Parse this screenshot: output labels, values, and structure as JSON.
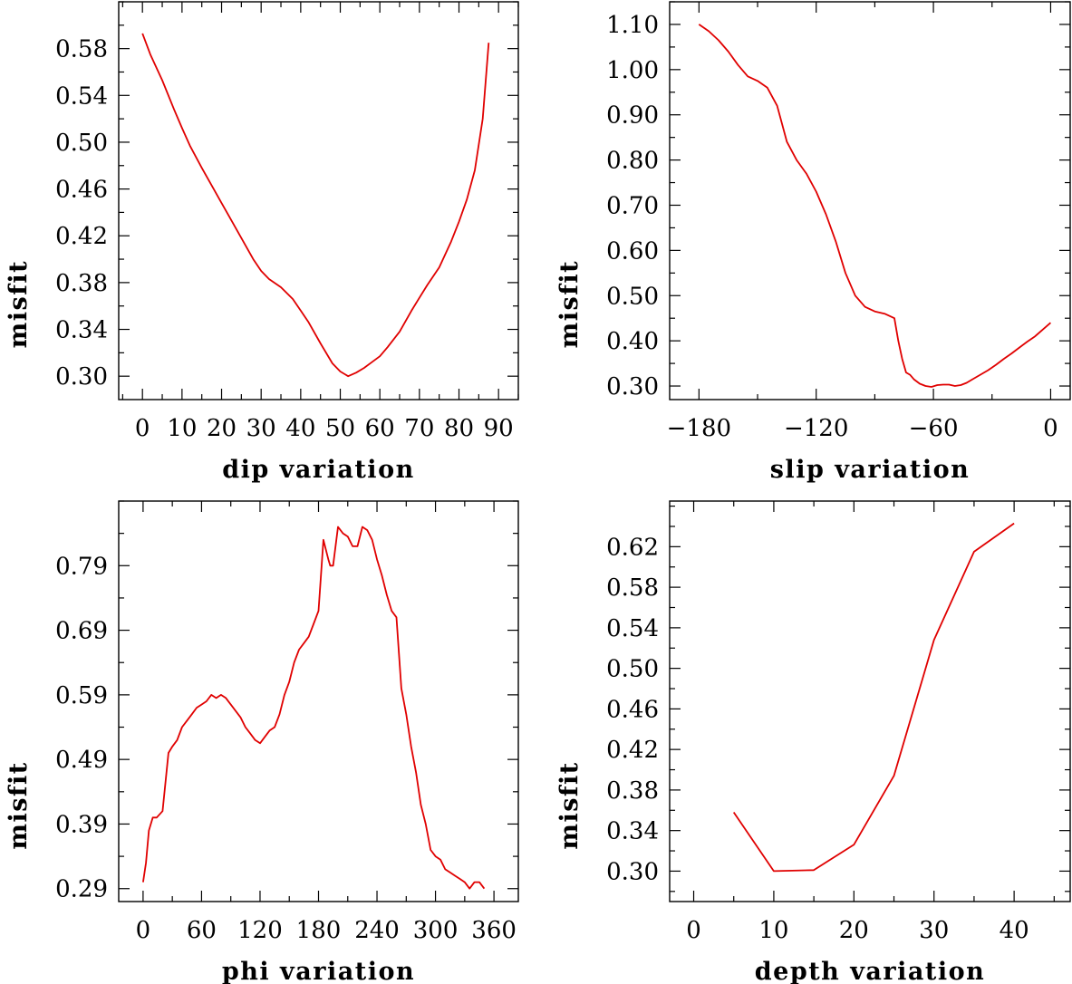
{
  "chart_data": [
    {
      "type": "line",
      "xlabel": "dip    variation",
      "ylabel": "misfit",
      "xlim": [
        -6,
        95
      ],
      "ylim": [
        0.28,
        0.62
      ],
      "xticks": [
        0,
        10,
        20,
        30,
        40,
        50,
        60,
        70,
        80,
        90
      ],
      "xtick_labels": [
        "0",
        "10",
        "20",
        "30",
        "40",
        "50",
        "60",
        "70",
        "80",
        "90"
      ],
      "yticks": [
        0.3,
        0.34,
        0.38,
        0.42,
        0.46,
        0.5,
        0.54,
        0.58
      ],
      "ytick_labels": [
        "0.30",
        "0.34",
        "0.38",
        "0.42",
        "0.46",
        "0.50",
        "0.54",
        "0.58"
      ],
      "color": "#e00000",
      "x": [
        0,
        2,
        5,
        8,
        10,
        12,
        15,
        18,
        20,
        22,
        25,
        28,
        30,
        32,
        35,
        38,
        40,
        42,
        45,
        48,
        50,
        52,
        54,
        56,
        58,
        60,
        62,
        65,
        68,
        70,
        72,
        75,
        78,
        80,
        82,
        84,
        86,
        87.5
      ],
      "y": [
        0.593,
        0.575,
        0.553,
        0.528,
        0.512,
        0.497,
        0.478,
        0.46,
        0.448,
        0.436,
        0.418,
        0.4,
        0.39,
        0.383,
        0.376,
        0.366,
        0.356,
        0.346,
        0.328,
        0.311,
        0.304,
        0.3,
        0.303,
        0.307,
        0.312,
        0.317,
        0.325,
        0.338,
        0.356,
        0.367,
        0.378,
        0.393,
        0.415,
        0.432,
        0.451,
        0.476,
        0.52,
        0.585
      ]
    },
    {
      "type": "line",
      "xlabel": "slip    variation",
      "ylabel": "misfit",
      "xlim": [
        -195,
        10
      ],
      "ylim": [
        0.27,
        1.15
      ],
      "xticks": [
        -180,
        -120,
        -60,
        0
      ],
      "xtick_labels": [
        "−180",
        "−120",
        "−60",
        "0"
      ],
      "yticks": [
        0.3,
        0.4,
        0.5,
        0.6,
        0.7,
        0.8,
        0.9,
        1.0,
        1.1
      ],
      "ytick_labels": [
        "0.30",
        "0.40",
        "0.50",
        "0.60",
        "0.70",
        "0.80",
        "0.90",
        "1.00",
        "1.10"
      ],
      "color": "#e00000",
      "x": [
        -180,
        -175,
        -170,
        -165,
        -160,
        -155,
        -150,
        -145,
        -140,
        -135,
        -130,
        -125,
        -120,
        -115,
        -110,
        -105,
        -100,
        -95,
        -90,
        -85,
        -80,
        -78,
        -76,
        -74,
        -72,
        -70,
        -67,
        -64,
        -61,
        -58,
        -55,
        -52,
        -49,
        -46,
        -43,
        -40,
        -36,
        -32,
        -28,
        -24,
        -20,
        -16,
        -12,
        -8,
        -4,
        0
      ],
      "y": [
        1.1,
        1.085,
        1.065,
        1.04,
        1.01,
        0.985,
        0.975,
        0.96,
        0.92,
        0.84,
        0.8,
        0.77,
        0.73,
        0.68,
        0.62,
        0.55,
        0.5,
        0.475,
        0.465,
        0.46,
        0.45,
        0.4,
        0.36,
        0.33,
        0.325,
        0.315,
        0.305,
        0.3,
        0.298,
        0.302,
        0.303,
        0.303,
        0.3,
        0.302,
        0.307,
        0.315,
        0.325,
        0.335,
        0.347,
        0.36,
        0.372,
        0.385,
        0.398,
        0.41,
        0.425,
        0.44
      ]
    },
    {
      "type": "line",
      "xlabel": "phi    variation",
      "ylabel": "misfit",
      "xlim": [
        -25,
        385
      ],
      "ylim": [
        0.27,
        0.89
      ],
      "xticks": [
        0,
        60,
        120,
        180,
        240,
        300,
        360
      ],
      "xtick_labels": [
        "0",
        "60",
        "120",
        "180",
        "240",
        "300",
        "360"
      ],
      "yticks": [
        0.29,
        0.39,
        0.49,
        0.59,
        0.69,
        0.79
      ],
      "ytick_labels": [
        "0.29",
        "0.39",
        "0.49",
        "0.59",
        "0.69",
        "0.79"
      ],
      "color": "#e00000",
      "x": [
        0,
        3,
        6,
        10,
        14,
        20,
        26,
        30,
        35,
        40,
        45,
        50,
        55,
        60,
        65,
        70,
        75,
        80,
        85,
        90,
        95,
        100,
        105,
        110,
        115,
        120,
        125,
        130,
        135,
        140,
        145,
        150,
        155,
        160,
        165,
        170,
        175,
        180,
        185,
        190,
        192,
        195,
        200,
        205,
        210,
        215,
        220,
        225,
        230,
        235,
        240,
        245,
        250,
        255,
        260,
        265,
        270,
        275,
        280,
        285,
        290,
        295,
        300,
        305,
        310,
        315,
        320,
        325,
        330,
        335,
        340,
        345,
        350
      ],
      "y": [
        0.3,
        0.33,
        0.38,
        0.4,
        0.4,
        0.41,
        0.5,
        0.51,
        0.52,
        0.54,
        0.55,
        0.56,
        0.57,
        0.575,
        0.58,
        0.59,
        0.585,
        0.59,
        0.585,
        0.575,
        0.565,
        0.555,
        0.54,
        0.53,
        0.52,
        0.515,
        0.525,
        0.535,
        0.54,
        0.56,
        0.59,
        0.61,
        0.64,
        0.66,
        0.67,
        0.68,
        0.7,
        0.72,
        0.83,
        0.8,
        0.79,
        0.79,
        0.85,
        0.84,
        0.835,
        0.82,
        0.82,
        0.85,
        0.845,
        0.83,
        0.8,
        0.775,
        0.745,
        0.72,
        0.71,
        0.6,
        0.56,
        0.51,
        0.47,
        0.42,
        0.39,
        0.35,
        0.34,
        0.335,
        0.32,
        0.315,
        0.31,
        0.305,
        0.3,
        0.29,
        0.3,
        0.3,
        0.29
      ]
    },
    {
      "type": "line",
      "xlabel": "depth    variation",
      "ylabel": "misfit",
      "xlim": [
        -3,
        47
      ],
      "ylim": [
        0.27,
        0.665
      ],
      "xticks": [
        0,
        10,
        20,
        30,
        40
      ],
      "xtick_labels": [
        "0",
        "10",
        "20",
        "30",
        "40"
      ],
      "yticks": [
        0.3,
        0.34,
        0.38,
        0.42,
        0.46,
        0.5,
        0.54,
        0.58,
        0.62
      ],
      "ytick_labels": [
        "0.30",
        "0.34",
        "0.38",
        "0.42",
        "0.46",
        "0.50",
        "0.54",
        "0.58",
        "0.62"
      ],
      "color": "#e00000",
      "x": [
        5,
        10,
        15,
        20,
        25,
        30,
        35,
        40
      ],
      "y": [
        0.358,
        0.3,
        0.301,
        0.326,
        0.394,
        0.528,
        0.615,
        0.643
      ]
    }
  ]
}
